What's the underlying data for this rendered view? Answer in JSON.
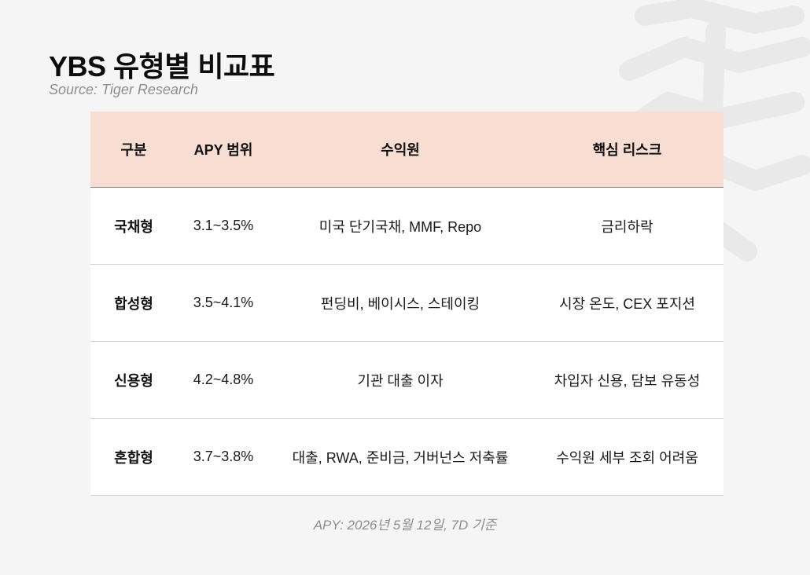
{
  "title": "YBS 유형별 비교표",
  "source": "Source: Tiger Research",
  "table": {
    "headers": [
      "구분",
      "APY 범위",
      "수익원",
      "핵심 리스크"
    ],
    "rows": [
      [
        "국채형",
        "3.1~3.5%",
        "미국 단기국채, MMF, Repo",
        "금리하락"
      ],
      [
        "합성형",
        "3.5~4.1%",
        "펀딩비, 베이시스, 스테이킹",
        "시장 온도, CEX 포지션"
      ],
      [
        "신용형",
        "4.2~4.8%",
        "기관 대출 이자",
        "차입자 신용, 담보 유동성"
      ],
      [
        "혼합형",
        "3.7~3.8%",
        "대출, RWA, 준비금, 거버넌스 저축률",
        "수익원 세부 조회 어려움"
      ]
    ]
  },
  "footnote": "APY: 2026년 5월 12일, 7D 기준",
  "colors": {
    "background": "#f5f5f5",
    "header_bg": "#f7ddd2",
    "row_bg": "#ffffff",
    "muted_text": "#8e8e8e"
  },
  "icons": {
    "watermark": "tiger-logo-watermark"
  }
}
